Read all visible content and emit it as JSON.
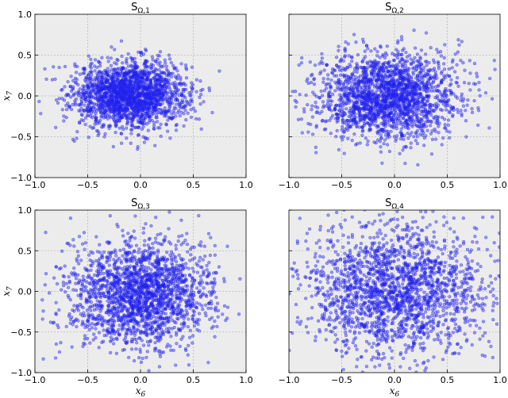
{
  "chart_data": [
    {
      "type": "scatter",
      "title": "SΩ,1",
      "title_main": "S",
      "title_sub": "Ω,1",
      "xlabel": "",
      "ylabel": "x7",
      "xlim": [
        -1.0,
        1.0
      ],
      "ylim": [
        -1.0,
        1.0
      ],
      "x_ticks": [
        "−1.0",
        "−0.5",
        "0.0",
        "0.5",
        "1.0"
      ],
      "y_ticks": [
        "1.0",
        "0.5",
        "0.0",
        "−0.5",
        "−1.0"
      ],
      "grid": true,
      "point_count": 2000,
      "distribution": {
        "center": [
          -0.1,
          0.02
        ],
        "spread": [
          0.27,
          0.2
        ]
      },
      "color": "#2222ee"
    },
    {
      "type": "scatter",
      "title": "SΩ,2",
      "title_main": "S",
      "title_sub": "Ω,2",
      "xlabel": "",
      "ylabel": "",
      "xlim": [
        -1.0,
        1.0
      ],
      "ylim": [
        -1.0,
        1.0
      ],
      "x_ticks": [
        "−1.0",
        "−0.5",
        "0.0",
        "0.5",
        "1.0"
      ],
      "y_ticks": [],
      "grid": true,
      "point_count": 2000,
      "distribution": {
        "center": [
          -0.05,
          0.0
        ],
        "spread": [
          0.32,
          0.27
        ]
      },
      "color": "#2222ee"
    },
    {
      "type": "scatter",
      "title": "SΩ,3",
      "title_main": "S",
      "title_sub": "Ω,3",
      "xlabel": "x6",
      "ylabel": "x7",
      "xlim": [
        -1.0,
        1.0
      ],
      "ylim": [
        -1.0,
        1.0
      ],
      "x_ticks": [
        "−1.0",
        "−0.5",
        "0.0",
        "0.5",
        "1.0"
      ],
      "y_ticks": [
        "1.0",
        "0.5",
        "0.0",
        "−0.5",
        "−1.0"
      ],
      "grid": true,
      "point_count": 2000,
      "distribution": {
        "center": [
          0.0,
          -0.05
        ],
        "spread": [
          0.35,
          0.32
        ]
      },
      "color": "#2222ee"
    },
    {
      "type": "scatter",
      "title": "SΩ,4",
      "title_main": "S",
      "title_sub": "Ω,4",
      "xlabel": "x6",
      "ylabel": "",
      "xlim": [
        -1.0,
        1.0
      ],
      "ylim": [
        -1.0,
        1.0
      ],
      "x_ticks": [
        "−1.0",
        "−0.5",
        "0.0",
        "0.5",
        "1.0"
      ],
      "y_ticks": [],
      "grid": true,
      "point_count": 2000,
      "distribution": {
        "center": [
          0.0,
          0.0
        ],
        "spread": [
          0.45,
          0.42
        ]
      },
      "color": "#2222ee"
    }
  ],
  "colors": {
    "panel_background": "#ececec",
    "grid": "#b8b8b8",
    "marker": "#2222ee"
  }
}
